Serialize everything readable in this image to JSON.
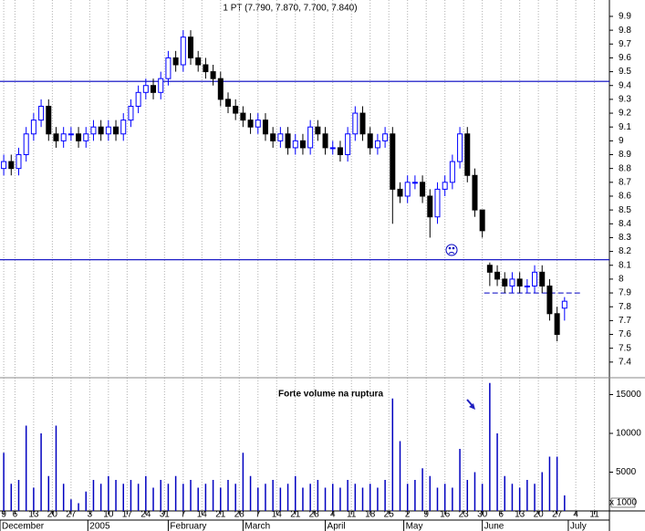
{
  "chart_data": {
    "type": "candlestick",
    "title": "1 PT (7.790, 7.870, 7.700, 7.840)",
    "x": [
      1,
      3,
      5,
      7,
      9,
      11,
      13,
      15,
      17,
      19,
      21,
      23,
      25,
      27,
      29,
      31,
      33,
      35,
      37,
      39,
      41,
      43,
      45,
      47,
      49,
      51,
      53,
      55,
      57,
      59,
      61,
      63,
      65,
      67,
      69,
      71,
      73,
      75,
      77,
      79,
      81,
      83,
      85,
      87,
      89,
      91,
      93,
      95,
      97,
      99,
      101,
      103,
      105,
      107,
      109,
      111,
      113,
      115,
      117,
      119,
      121,
      123,
      125,
      127,
      129,
      131,
      133,
      135,
      137,
      139,
      141,
      143,
      145,
      147,
      149,
      151
    ],
    "open": [
      8.8,
      8.85,
      8.8,
      8.9,
      9.05,
      9.15,
      9.25,
      9.05,
      9.0,
      9.05,
      9.05,
      9.0,
      9.05,
      9.1,
      9.05,
      9.1,
      9.05,
      9.15,
      9.25,
      9.35,
      9.4,
      9.35,
      9.45,
      9.6,
      9.55,
      9.75,
      9.6,
      9.55,
      9.5,
      9.45,
      9.3,
      9.25,
      9.2,
      9.15,
      9.1,
      9.15,
      9.05,
      9.0,
      9.05,
      8.95,
      9.0,
      8.95,
      9.1,
      9.05,
      8.95,
      8.95,
      8.9,
      9.05,
      9.2,
      9.05,
      8.95,
      9.0,
      9.05,
      8.65,
      8.6,
      8.7,
      8.7,
      8.6,
      8.45,
      8.65,
      8.7,
      8.85,
      9.05,
      8.75,
      8.5,
      8.1,
      8.05,
      8.0,
      7.95,
      8.0,
      7.95,
      7.95,
      8.05,
      7.95,
      7.75,
      7.79
    ],
    "high": [
      8.9,
      8.9,
      8.95,
      9.1,
      9.2,
      9.3,
      9.3,
      9.1,
      9.1,
      9.1,
      9.1,
      9.1,
      9.15,
      9.15,
      9.15,
      9.15,
      9.2,
      9.3,
      9.4,
      9.45,
      9.45,
      9.5,
      9.65,
      9.65,
      9.8,
      9.8,
      9.65,
      9.6,
      9.55,
      9.5,
      9.35,
      9.3,
      9.25,
      9.2,
      9.2,
      9.2,
      9.1,
      9.1,
      9.1,
      9.05,
      9.05,
      9.15,
      9.15,
      9.1,
      9.0,
      9.0,
      9.1,
      9.25,
      9.25,
      9.1,
      9.05,
      9.1,
      9.1,
      8.7,
      8.75,
      8.75,
      8.75,
      8.65,
      8.7,
      8.75,
      8.9,
      9.1,
      9.1,
      8.8,
      8.5,
      8.12,
      8.1,
      8.05,
      8.05,
      8.05,
      8.0,
      8.1,
      8.1,
      8.0,
      7.8,
      7.87
    ],
    "low": [
      8.75,
      8.75,
      8.75,
      8.85,
      9.0,
      9.1,
      9.0,
      8.95,
      8.95,
      9.0,
      8.95,
      8.95,
      9.0,
      9.0,
      9.0,
      9.0,
      9.0,
      9.1,
      9.2,
      9.3,
      9.3,
      9.3,
      9.4,
      9.5,
      9.5,
      9.55,
      9.5,
      9.45,
      9.4,
      9.25,
      9.2,
      9.15,
      9.1,
      9.05,
      9.05,
      9.0,
      8.95,
      8.95,
      8.9,
      8.9,
      8.9,
      8.9,
      9.0,
      8.9,
      8.9,
      8.85,
      8.85,
      9.0,
      9.0,
      8.9,
      8.9,
      8.95,
      8.4,
      8.55,
      8.55,
      8.65,
      8.55,
      8.3,
      8.4,
      8.6,
      8.65,
      8.8,
      8.7,
      8.45,
      8.3,
      7.95,
      7.95,
      7.9,
      7.9,
      7.9,
      7.9,
      7.9,
      7.9,
      7.7,
      7.55,
      7.7
    ],
    "close": [
      8.85,
      8.8,
      8.9,
      9.05,
      9.15,
      9.25,
      9.05,
      9.0,
      9.05,
      9.05,
      9.0,
      9.05,
      9.1,
      9.05,
      9.1,
      9.05,
      9.15,
      9.25,
      9.35,
      9.4,
      9.35,
      9.45,
      9.6,
      9.55,
      9.75,
      9.6,
      9.55,
      9.5,
      9.45,
      9.3,
      9.25,
      9.2,
      9.15,
      9.1,
      9.15,
      9.05,
      9.0,
      9.05,
      8.95,
      9.0,
      8.95,
      9.1,
      9.05,
      8.95,
      8.95,
      8.9,
      9.05,
      9.2,
      9.05,
      8.95,
      9.0,
      9.05,
      8.65,
      8.6,
      8.7,
      8.7,
      8.6,
      8.45,
      8.65,
      8.7,
      8.85,
      9.05,
      8.75,
      8.5,
      8.35,
      8.05,
      8.0,
      7.95,
      8.0,
      7.95,
      7.95,
      8.05,
      7.95,
      7.75,
      7.6,
      7.84
    ],
    "volume": [
      7500,
      3500,
      4000,
      11000,
      3000,
      10000,
      4500,
      11000,
      3500,
      1500,
      1000,
      2500,
      4000,
      3500,
      4500,
      4000,
      3500,
      4000,
      3500,
      4500,
      3000,
      4000,
      3500,
      4500,
      3500,
      4000,
      3000,
      3500,
      4000,
      3000,
      4000,
      3500,
      7500,
      4500,
      3000,
      3500,
      4000,
      3000,
      3500,
      4500,
      3000,
      3500,
      4000,
      3000,
      3500,
      3000,
      4000,
      3500,
      3000,
      3500,
      3000,
      4000,
      14500,
      9000,
      3500,
      4000,
      5500,
      4500,
      3000,
      3500,
      3000,
      8000,
      4000,
      5000,
      3500,
      16500,
      10000,
      4500,
      3500,
      3000,
      4000,
      3500,
      5000,
      7000,
      7000,
      2000
    ],
    "xlim": [
      0,
      163
    ],
    "ylim": [
      7.3,
      10.0
    ],
    "yticks": [
      7.4,
      7.5,
      7.6,
      7.7,
      7.8,
      7.9,
      8.0,
      8.1,
      8.2,
      8.3,
      8.4,
      8.5,
      8.6,
      8.7,
      8.8,
      8.9,
      9.0,
      9.1,
      9.2,
      9.3,
      9.4,
      9.5,
      9.6,
      9.7,
      9.8,
      9.9
    ],
    "vol_ylim": [
      0,
      17000
    ],
    "vol_yticks": [
      5000,
      10000,
      15000
    ],
    "volume_unit": "x 1000",
    "xticks": [
      {
        "value": 1,
        "label": "9"
      },
      {
        "value": 4,
        "label": "6"
      },
      {
        "value": 9,
        "label": "13"
      },
      {
        "value": 14,
        "label": "20"
      },
      {
        "value": 19,
        "label": "27"
      },
      {
        "value": 24,
        "label": "3"
      },
      {
        "value": 29,
        "label": "10"
      },
      {
        "value": 34,
        "label": "17"
      },
      {
        "value": 39,
        "label": "24"
      },
      {
        "value": 44,
        "label": "31"
      },
      {
        "value": 49,
        "label": "7"
      },
      {
        "value": 54,
        "label": "14"
      },
      {
        "value": 59,
        "label": "21"
      },
      {
        "value": 64,
        "label": "28"
      },
      {
        "value": 69,
        "label": "7"
      },
      {
        "value": 74,
        "label": "14"
      },
      {
        "value": 79,
        "label": "21"
      },
      {
        "value": 84,
        "label": "28"
      },
      {
        "value": 89,
        "label": "4"
      },
      {
        "value": 94,
        "label": "11"
      },
      {
        "value": 99,
        "label": "18"
      },
      {
        "value": 104,
        "label": "25"
      },
      {
        "value": 109,
        "label": "2"
      },
      {
        "value": 114,
        "label": "9"
      },
      {
        "value": 119,
        "label": "16"
      },
      {
        "value": 124,
        "label": "23"
      },
      {
        "value": 129,
        "label": "30"
      },
      {
        "value": 134,
        "label": "6"
      },
      {
        "value": 139,
        "label": "13"
      },
      {
        "value": 144,
        "label": "20"
      },
      {
        "value": 149,
        "label": "27"
      },
      {
        "value": 154,
        "label": "4"
      },
      {
        "value": 159,
        "label": "11"
      }
    ],
    "month_ticks": [
      {
        "value": 0,
        "label": "December"
      },
      {
        "value": 23.5,
        "label": "2005"
      },
      {
        "value": 45,
        "label": "February"
      },
      {
        "value": 65,
        "label": "March"
      },
      {
        "value": 87,
        "label": "April"
      },
      {
        "value": 108,
        "label": "May"
      },
      {
        "value": 129,
        "label": "June"
      },
      {
        "value": 152,
        "label": "July"
      }
    ],
    "hlines": [
      9.43,
      8.14
    ],
    "support_line": {
      "value": 7.9,
      "x": [
        129.5,
        155.5
      ]
    },
    "annotation": "Forte volume na ruptura",
    "up_color": "#0000ff",
    "down_color": "#000000",
    "line_color": "#0000c0",
    "annotation_color": "#2020c0",
    "grid": true
  }
}
